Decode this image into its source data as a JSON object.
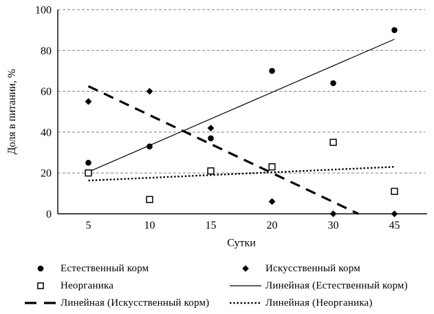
{
  "chart_data": {
    "type": "scatter",
    "title": "",
    "xlabel": "Сутки",
    "ylabel": "Доля в питании, %",
    "x_categories": [
      "5",
      "10",
      "15",
      "20",
      "30",
      "45"
    ],
    "ylim": [
      0,
      100
    ],
    "ytick_step": 20,
    "yticks": [
      "0",
      "20",
      "40",
      "60",
      "80",
      "100"
    ],
    "grid": "horizontal-dashed",
    "legend_position": "bottom",
    "series": [
      {
        "key": "natural-food",
        "name": "Естественный корм",
        "marker": "filled-circle",
        "values": [
          25,
          33,
          37,
          70,
          64,
          90
        ]
      },
      {
        "key": "artificial-food",
        "name": "Искусственный корм",
        "marker": "filled-diamond",
        "values": [
          55,
          60,
          42,
          6,
          0,
          0
        ]
      },
      {
        "key": "inorganic",
        "name": "Неорганика",
        "marker": "open-square",
        "values": [
          20,
          7,
          21,
          23,
          35,
          11
        ]
      }
    ],
    "trendlines": [
      {
        "key": "trend-natural-food",
        "name": "Линейная (Естественный корм)",
        "style": "solid",
        "from": {
          "t": 0,
          "v": 20.5
        },
        "to": {
          "t": 5,
          "v": 85.5
        }
      },
      {
        "key": "trend-artificial-food",
        "name": "Линейная (Искусственный корм)",
        "style": "dashed",
        "from": {
          "t": 0,
          "v": 62.5
        },
        "to": {
          "t": 4.41,
          "v": 0
        }
      },
      {
        "key": "trend-inorganic",
        "name": "Линейная (Неорганика)",
        "style": "dotted",
        "from": {
          "t": 0,
          "v": 16.3
        },
        "to": {
          "t": 5,
          "v": 23
        }
      }
    ]
  },
  "legend": {
    "items": [
      {
        "key": "natural-food",
        "marker": "filled-circle",
        "label": "Естественный корм"
      },
      {
        "key": "artificial-food",
        "marker": "filled-diamond",
        "label": "Искусственный корм"
      },
      {
        "key": "inorganic",
        "marker": "open-square",
        "label": "Неорганика"
      },
      {
        "key": "trend-natural-food",
        "marker": "solid-line",
        "label": "Линейная (Естественный корм)"
      },
      {
        "key": "trend-artificial-food",
        "marker": "dashed-line",
        "label": "Линейная (Искусственный корм)"
      },
      {
        "key": "trend-inorganic",
        "marker": "dotted-line",
        "label": "Линейная (Неорганика)"
      }
    ]
  },
  "colors": {
    "foreground": "#000000",
    "background": "#ffffff",
    "gridline": "#7f7f7f"
  }
}
